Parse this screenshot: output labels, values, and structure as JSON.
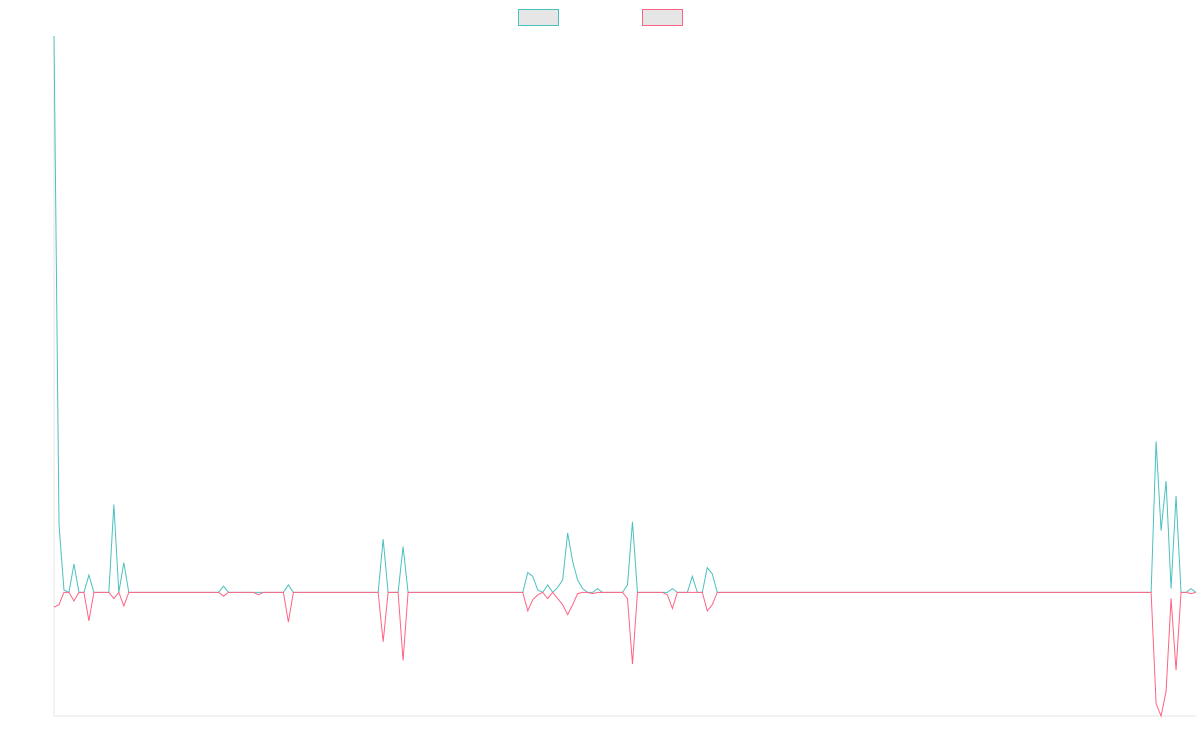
{
  "chart_data": {
    "type": "line",
    "title": "",
    "xlabel": "",
    "ylabel": "",
    "grid": false,
    "legend_position": "top-center",
    "baseline": 0,
    "ylim": [
      -1.0,
      4.5
    ],
    "series": [
      {
        "color": "#4bc0c0",
        "fill": "#e6e6e6",
        "values": [
          4.5,
          0.55,
          0.02,
          0.0,
          0.23,
          0.0,
          0.0,
          0.14,
          0.0,
          0.0,
          0.0,
          0.0,
          0.71,
          0.0,
          0.24,
          0.0,
          0.0,
          0.0,
          0.0,
          0.0,
          0.0,
          0.0,
          0.0,
          0.0,
          0.0,
          0.0,
          0.0,
          0.0,
          0.0,
          0.0,
          0.0,
          0.0,
          0.0,
          0.0,
          0.05,
          0.0,
          0.0,
          0.0,
          0.0,
          0.0,
          0.0,
          0.0,
          0.0,
          0.0,
          0.0,
          0.0,
          0.0,
          0.06,
          0.0,
          0.0,
          0.0,
          0.0,
          0.0,
          0.0,
          0.0,
          0.0,
          0.0,
          0.0,
          0.0,
          0.0,
          0.0,
          0.0,
          0.0,
          0.0,
          0.0,
          0.0,
          0.43,
          0.0,
          0.0,
          0.0,
          0.37,
          0.0,
          0.0,
          0.0,
          0.0,
          0.0,
          0.0,
          0.0,
          0.0,
          0.0,
          0.0,
          0.0,
          0.0,
          0.0,
          0.0,
          0.0,
          0.0,
          0.0,
          0.0,
          0.0,
          0.0,
          0.0,
          0.0,
          0.0,
          0.0,
          0.16,
          0.13,
          0.02,
          0.0,
          0.06,
          0.0,
          0.04,
          0.1,
          0.48,
          0.25,
          0.1,
          0.03,
          0.0,
          0.0,
          0.03,
          0.0,
          0.0,
          0.0,
          0.0,
          0.0,
          0.06,
          0.57,
          0.0,
          0.0,
          0.0,
          0.0,
          0.0,
          0.0,
          0.0,
          0.03,
          0.0,
          0.0,
          0.0,
          0.13,
          0.0,
          0.0,
          0.2,
          0.15,
          0.0,
          0.0,
          0.0,
          0.0,
          0.0,
          0.0,
          0.0,
          0.0,
          0.0,
          0.0,
          0.0,
          0.0,
          0.0,
          0.0,
          0.0,
          0.0,
          0.0,
          0.0,
          0.0,
          0.0,
          0.0,
          0.0,
          0.0,
          0.0,
          0.0,
          0.0,
          0.0,
          0.0,
          0.0,
          0.0,
          0.0,
          0.0,
          0.0,
          0.0,
          0.0,
          0.0,
          0.0,
          0.0,
          0.0,
          0.0,
          0.0,
          0.0,
          0.0,
          0.0,
          0.0,
          0.0,
          0.0,
          0.0,
          0.0,
          0.0,
          0.0,
          0.0,
          0.0,
          0.0,
          0.0,
          0.0,
          0.0,
          0.0,
          0.0,
          0.0,
          0.0,
          0.0,
          0.0,
          0.0,
          0.0,
          0.0,
          0.0,
          0.0,
          0.0,
          0.0,
          0.0,
          0.0,
          0.0,
          0.0,
          0.0,
          0.0,
          0.0,
          0.0,
          0.0,
          0.0,
          0.0,
          0.0,
          0.0,
          0.0,
          0.0,
          0.0,
          0.0,
          0.0,
          1.22,
          0.5,
          0.9,
          0.03,
          0.78,
          0.0,
          0.0,
          0.03,
          0.0
        ]
      },
      {
        "color": "#ff6384",
        "fill": "#e6e6e6",
        "values": [
          -0.12,
          -0.1,
          0.0,
          0.0,
          -0.07,
          0.0,
          0.0,
          -0.23,
          0.0,
          0.0,
          0.0,
          0.0,
          -0.05,
          0.0,
          -0.11,
          0.0,
          0.0,
          0.0,
          0.0,
          0.0,
          0.0,
          0.0,
          0.0,
          0.0,
          0.0,
          0.0,
          0.0,
          0.0,
          0.0,
          0.0,
          0.0,
          0.0,
          0.0,
          0.0,
          -0.03,
          0.0,
          0.0,
          0.0,
          0.0,
          0.0,
          0.0,
          -0.02,
          0.0,
          0.0,
          0.0,
          0.0,
          0.0,
          -0.24,
          0.0,
          0.0,
          0.0,
          0.0,
          0.0,
          0.0,
          0.0,
          0.0,
          0.0,
          0.0,
          0.0,
          0.0,
          0.0,
          0.0,
          0.0,
          0.0,
          0.0,
          0.0,
          -0.4,
          0.0,
          0.0,
          0.0,
          -0.55,
          0.0,
          0.0,
          0.0,
          0.0,
          0.0,
          0.0,
          0.0,
          0.0,
          0.0,
          0.0,
          0.0,
          0.0,
          0.0,
          0.0,
          0.0,
          0.0,
          0.0,
          0.0,
          0.0,
          0.0,
          0.0,
          0.0,
          0.0,
          0.0,
          -0.15,
          -0.06,
          -0.02,
          0.0,
          -0.05,
          0.0,
          -0.05,
          -0.1,
          -0.18,
          -0.1,
          -0.01,
          0.0,
          0.0,
          -0.01,
          0.0,
          0.0,
          0.0,
          0.0,
          0.0,
          0.0,
          -0.05,
          -0.58,
          0.0,
          0.0,
          0.0,
          0.0,
          0.0,
          0.0,
          -0.02,
          -0.13,
          0.0,
          0.0,
          0.0,
          0.0,
          0.0,
          0.0,
          -0.15,
          -0.1,
          0.0,
          0.0,
          0.0,
          0.0,
          0.0,
          0.0,
          0.0,
          0.0,
          0.0,
          0.0,
          0.0,
          0.0,
          0.0,
          0.0,
          0.0,
          0.0,
          0.0,
          0.0,
          0.0,
          0.0,
          0.0,
          0.0,
          0.0,
          0.0,
          0.0,
          0.0,
          0.0,
          0.0,
          0.0,
          0.0,
          0.0,
          0.0,
          0.0,
          0.0,
          0.0,
          0.0,
          0.0,
          0.0,
          0.0,
          0.0,
          0.0,
          0.0,
          0.0,
          0.0,
          0.0,
          0.0,
          0.0,
          0.0,
          0.0,
          0.0,
          0.0,
          0.0,
          0.0,
          0.0,
          0.0,
          0.0,
          0.0,
          0.0,
          0.0,
          0.0,
          0.0,
          0.0,
          0.0,
          0.0,
          0.0,
          0.0,
          0.0,
          0.0,
          0.0,
          0.0,
          0.0,
          0.0,
          0.0,
          0.0,
          0.0,
          0.0,
          0.0,
          0.0,
          0.0,
          0.0,
          0.0,
          0.0,
          0.0,
          0.0,
          0.0,
          0.0,
          0.0,
          0.0,
          -0.9,
          -1.0,
          -0.8,
          -0.05,
          -0.63,
          0.0,
          0.0,
          -0.01,
          0.0
        ]
      }
    ]
  }
}
